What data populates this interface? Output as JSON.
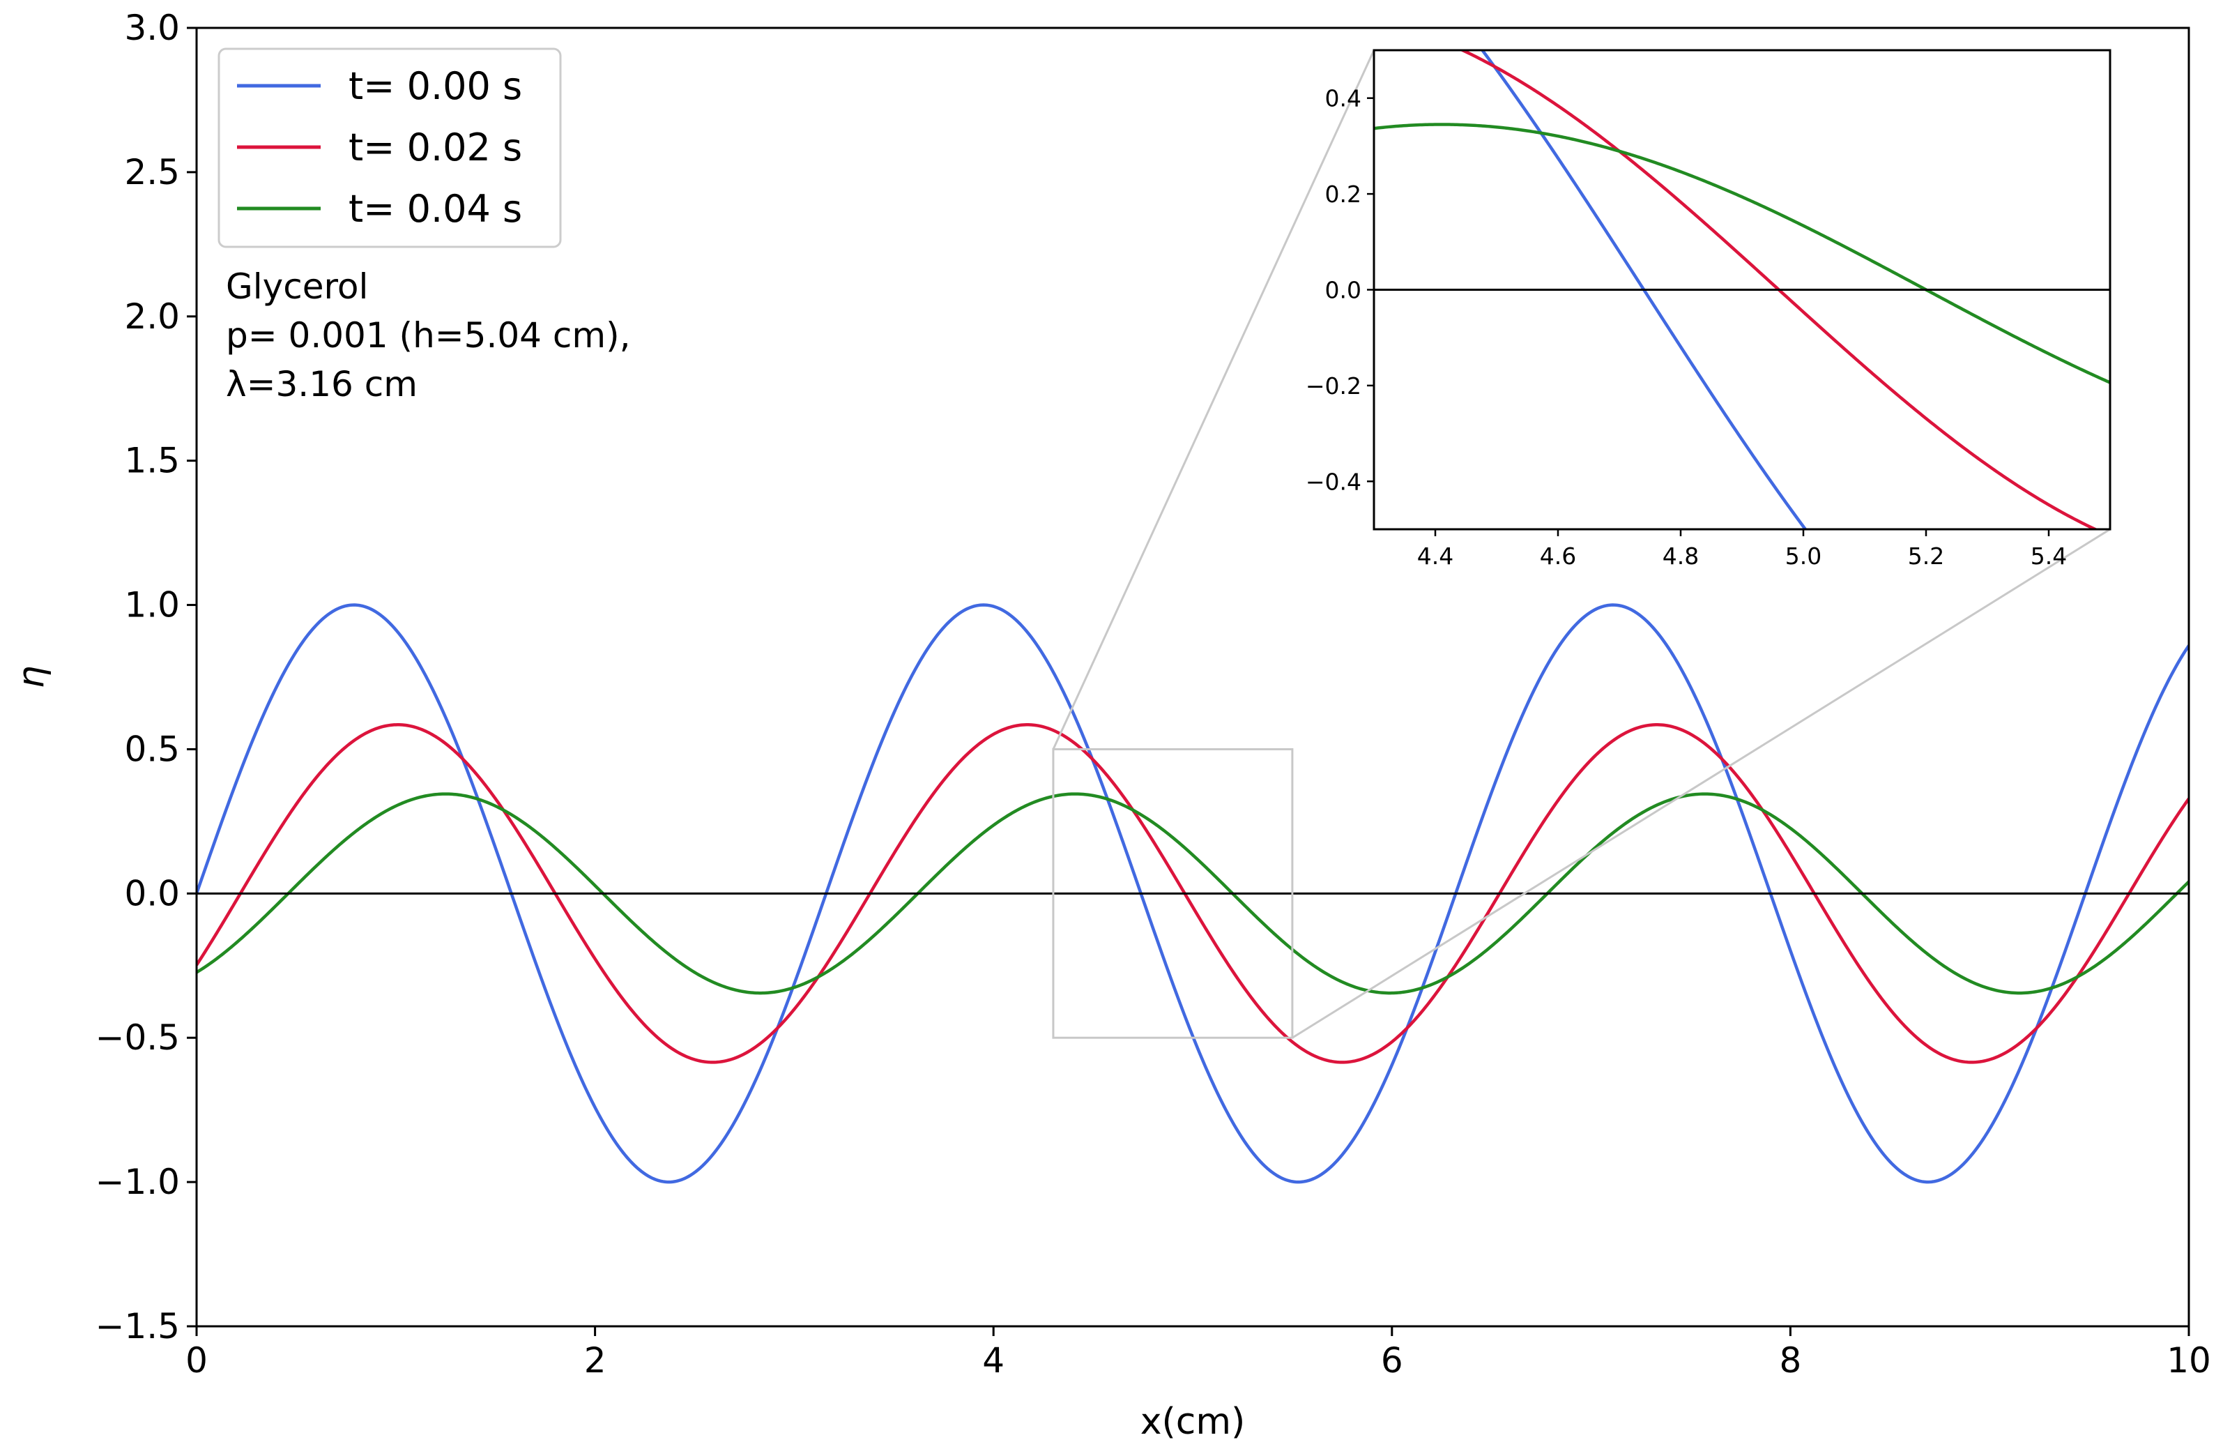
{
  "chart_data": {
    "type": "line",
    "title": "",
    "xlabel": "x(cm)",
    "ylabel": "η",
    "xlim": [
      0,
      10
    ],
    "ylim": [
      -1.5,
      3.0
    ],
    "xticks": [
      0,
      2,
      4,
      6,
      8,
      10
    ],
    "xtick_labels": [
      "0",
      "2",
      "4",
      "6",
      "8",
      "10"
    ],
    "yticks": [
      -1.5,
      -1.0,
      -0.5,
      0.0,
      0.5,
      1.0,
      1.5,
      2.0,
      2.5,
      3.0
    ],
    "ytick_labels": [
      "−1.5",
      "−1.0",
      "−0.5",
      "0.0",
      "0.5",
      "1.0",
      "1.5",
      "2.0",
      "2.5",
      "3.0"
    ],
    "grid": false,
    "legend_position": "top-left",
    "reference_line_y": 0.0,
    "wavelength_cm": 3.16,
    "series": [
      {
        "name": "t= 0.00 s",
        "color": "#4169e1",
        "amplitude": 1.0,
        "phase_shift_cm": 0.0
      },
      {
        "name": "t= 0.02 s",
        "color": "#dc143c",
        "amplitude": 0.585,
        "phase_shift_cm": 0.22
      },
      {
        "name": "t= 0.04 s",
        "color": "#228b22",
        "amplitude": 0.345,
        "phase_shift_cm": 0.46
      }
    ],
    "annotation": [
      "Glycerol",
      "p= 0.001 (h=5.04 cm),",
      "λ=3.16 cm"
    ],
    "zoom_region": {
      "xlim": [
        4.3,
        5.5
      ],
      "ylim": [
        -0.5,
        0.5
      ]
    },
    "inset": {
      "xlim": [
        4.3,
        5.5
      ],
      "ylim": [
        -0.5,
        0.5
      ],
      "xticks": [
        4.4,
        4.6,
        4.8,
        5.0,
        5.2,
        5.4
      ],
      "xtick_labels": [
        "4.4",
        "4.6",
        "4.8",
        "5.0",
        "5.2",
        "5.4"
      ],
      "yticks": [
        -0.4,
        -0.2,
        0.0,
        0.2,
        0.4
      ],
      "ytick_labels": [
        "−0.4",
        "−0.2",
        "0.0",
        "0.2",
        "0.4"
      ]
    }
  }
}
